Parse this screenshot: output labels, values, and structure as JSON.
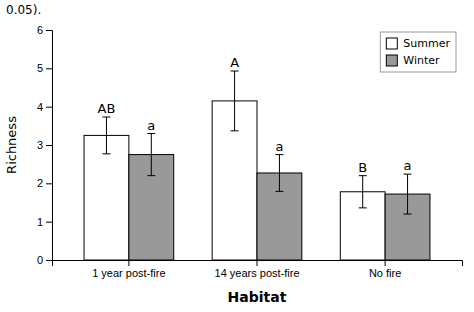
{
  "chart_data": {
    "type": "bar",
    "title": "0.05).",
    "categories": [
      "1 year post-fire",
      "14 years post-fire",
      "No fire"
    ],
    "series": [
      {
        "name": "Summer",
        "color": "#ffffff",
        "values": [
          3.25,
          4.15,
          1.78
        ],
        "errors": [
          0.48,
          0.78,
          0.42
        ],
        "labels": [
          "AB",
          "A",
          "B"
        ]
      },
      {
        "name": "Winter",
        "color": "#999999",
        "values": [
          2.75,
          2.27,
          1.72
        ],
        "errors": [
          0.55,
          0.48,
          0.52
        ],
        "labels": [
          "a",
          "a",
          "a"
        ]
      }
    ],
    "x_label": "Habitat",
    "y_label": "Richness",
    "ylim": [
      0,
      6
    ],
    "yticks": [
      0,
      1,
      2,
      3,
      4,
      5,
      6
    ],
    "legend": "upper right",
    "grid": false
  }
}
